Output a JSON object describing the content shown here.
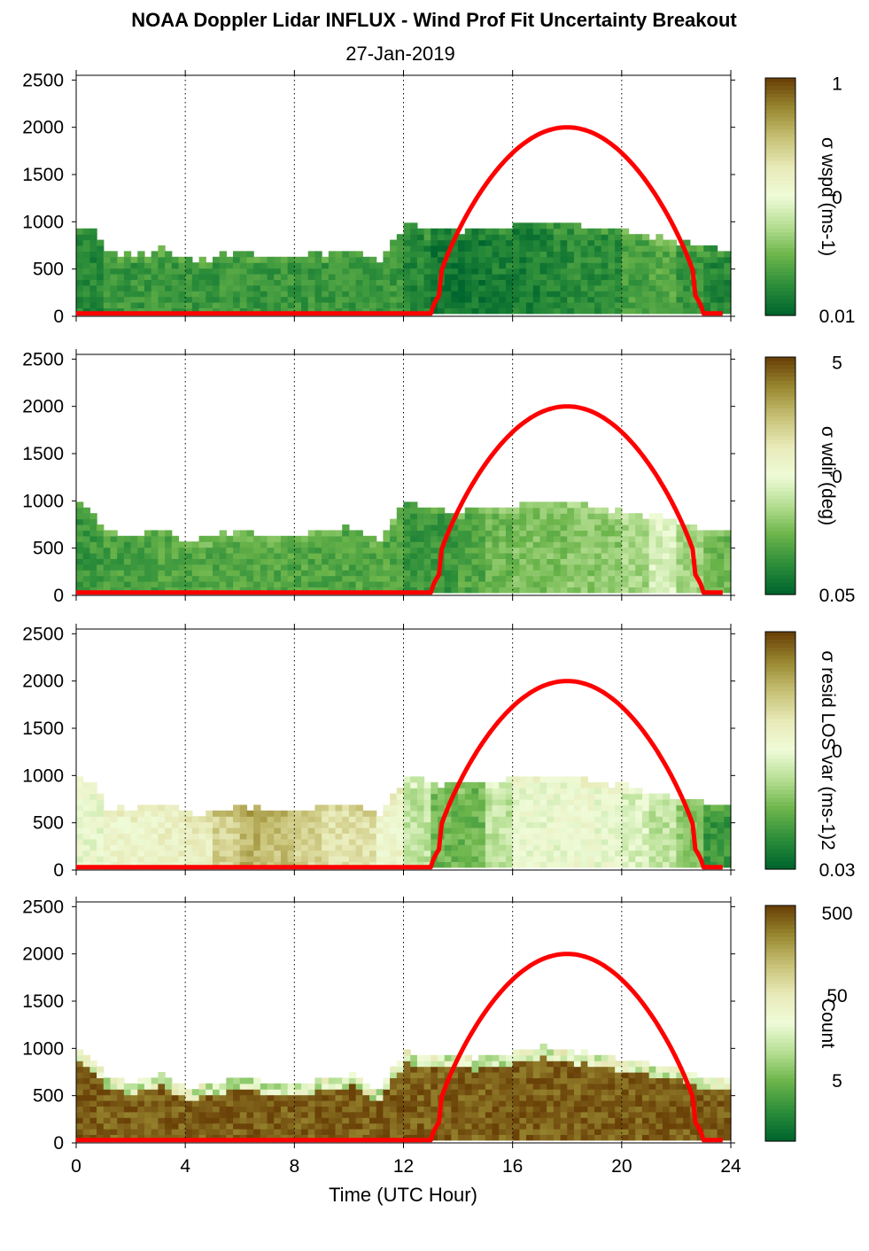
{
  "title": "NOAA Doppler Lidar INFLUX - Wind Prof Fit Uncertainty Breakout",
  "subtitle": "27-Jan-2019",
  "xlabel": "Time (UTC Hour)",
  "colors": {
    "curve": "#ff0000",
    "colormap": [
      "#00662e",
      "#2e8f3a",
      "#6cb54b",
      "#b6df93",
      "#effbd8",
      "#e8eab8",
      "#c8c277",
      "#9a8a32",
      "#6a4208"
    ]
  },
  "chart_data": [
    {
      "type": "heatmap",
      "panel": "wspd",
      "xlim": [
        0,
        24
      ],
      "ylim": [
        0,
        2550
      ],
      "xticks": [
        0,
        4,
        8,
        12,
        16,
        20,
        24
      ],
      "yticks": [
        0,
        500,
        1000,
        1500,
        2000,
        2500
      ],
      "grid": "vertical dotted lines every 4 h",
      "colorbar": {
        "label": "σ wspd (ms-1)",
        "ticks": [
          "1",
          "0",
          "0.01"
        ],
        "scale": "log"
      },
      "curve": {
        "x": [
          0,
          13,
          14,
          15,
          16,
          17,
          18,
          19,
          20,
          21,
          22,
          23,
          24
        ],
        "y": [
          30,
          30,
          900,
          1400,
          1750,
          1950,
          2000,
          1950,
          1750,
          1400,
          900,
          30,
          30
        ]
      },
      "top_height_m": [
        [
          0,
          950
        ],
        [
          0.5,
          880
        ],
        [
          1,
          650
        ],
        [
          2,
          600
        ],
        [
          3,
          700
        ],
        [
          4,
          550
        ],
        [
          5,
          600
        ],
        [
          6,
          650
        ],
        [
          7,
          600
        ],
        [
          8,
          600
        ],
        [
          9,
          650
        ],
        [
          10,
          700
        ],
        [
          11,
          550
        ],
        [
          12,
          950
        ],
        [
          13,
          900
        ],
        [
          14,
          880
        ],
        [
          15,
          900
        ],
        [
          16,
          950
        ],
        [
          17,
          980
        ],
        [
          18,
          950
        ],
        [
          19,
          900
        ],
        [
          20,
          870
        ],
        [
          21,
          800
        ],
        [
          22,
          750
        ],
        [
          23,
          680
        ],
        [
          23.8,
          650
        ]
      ],
      "color_level_by_hour": [
        0.1,
        0.15,
        0.15,
        0.15,
        0.15,
        0.15,
        0.15,
        0.15,
        0.15,
        0.15,
        0.15,
        0.15,
        0.1,
        0.05,
        0.05,
        0.08,
        0.08,
        0.1,
        0.12,
        0.12,
        0.18,
        0.2,
        0.15,
        0.1
      ]
    },
    {
      "type": "heatmap",
      "panel": "wdir",
      "xlim": [
        0,
        24
      ],
      "ylim": [
        0,
        2550
      ],
      "xticks": [
        0,
        4,
        8,
        12,
        16,
        20,
        24
      ],
      "yticks": [
        0,
        500,
        1000,
        1500,
        2000,
        2500
      ],
      "colorbar": {
        "label": "σ wdir (deg)",
        "ticks": [
          "5",
          "0",
          "0.05"
        ],
        "scale": "log"
      },
      "curve": {
        "x": [
          0,
          13,
          14,
          15,
          16,
          17,
          18,
          19,
          20,
          21,
          22,
          23,
          24
        ],
        "y": [
          30,
          30,
          900,
          1400,
          1750,
          1950,
          2000,
          1950,
          1750,
          1400,
          900,
          30,
          30
        ]
      },
      "color_level_by_hour": [
        0.15,
        0.18,
        0.18,
        0.2,
        0.2,
        0.2,
        0.2,
        0.2,
        0.2,
        0.2,
        0.2,
        0.2,
        0.15,
        0.15,
        0.2,
        0.25,
        0.28,
        0.28,
        0.3,
        0.3,
        0.35,
        0.45,
        0.35,
        0.25
      ]
    },
    {
      "type": "heatmap",
      "panel": "resid LOS var",
      "xlim": [
        0,
        24
      ],
      "ylim": [
        0,
        2550
      ],
      "xticks": [
        0,
        4,
        8,
        12,
        16,
        20,
        24
      ],
      "yticks": [
        0,
        500,
        1000,
        1500,
        2000,
        2500
      ],
      "colorbar": {
        "label": "σ resid LOS var (ms-1)2",
        "ticks": [
          "0",
          "0.03"
        ],
        "scale": "log"
      },
      "curve": {
        "x": [
          0,
          13,
          14,
          15,
          16,
          17,
          18,
          19,
          20,
          21,
          22,
          23,
          24
        ],
        "y": [
          30,
          30,
          900,
          1400,
          1750,
          1950,
          2000,
          1950,
          1750,
          1400,
          900,
          30,
          30
        ]
      },
      "color_level_by_hour": [
        0.5,
        0.55,
        0.55,
        0.58,
        0.6,
        0.7,
        0.78,
        0.75,
        0.7,
        0.65,
        0.65,
        0.55,
        0.4,
        0.25,
        0.25,
        0.4,
        0.5,
        0.5,
        0.52,
        0.5,
        0.45,
        0.4,
        0.3,
        0.15
      ]
    },
    {
      "type": "heatmap",
      "panel": "Count",
      "xlim": [
        0,
        24
      ],
      "ylim": [
        0,
        2550
      ],
      "xticks": [
        0,
        4,
        8,
        12,
        16,
        20,
        24
      ],
      "yticks": [
        0,
        500,
        1000,
        1500,
        2000,
        2500
      ],
      "colorbar": {
        "label": "Count",
        "ticks": [
          "500",
          "50",
          "5"
        ],
        "scale": "log"
      },
      "curve": {
        "x": [
          0,
          13,
          14,
          15,
          16,
          17,
          18,
          19,
          20,
          21,
          22,
          23,
          24
        ],
        "y": [
          30,
          30,
          900,
          1400,
          1750,
          1950,
          2000,
          1950,
          1750,
          1400,
          900,
          30,
          30
        ]
      },
      "color_level_by_hour": [
        0.95,
        0.95,
        0.95,
        0.95,
        0.95,
        0.95,
        0.95,
        0.95,
        0.95,
        0.95,
        0.95,
        0.95,
        0.95,
        0.95,
        0.95,
        0.95,
        0.95,
        0.95,
        0.95,
        0.95,
        0.95,
        0.95,
        0.95,
        0.95
      ]
    }
  ]
}
